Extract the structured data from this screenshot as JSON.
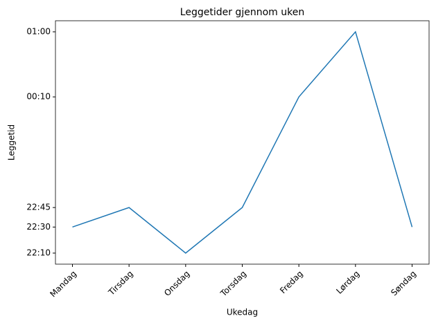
{
  "chart_data": {
    "type": "line",
    "title": "Leggetider gjennom uken",
    "x_label": "Ukedag",
    "y_label": "Leggetid",
    "categories": [
      "Mandag",
      "Tirsdag",
      "Onsdag",
      "Torsdag",
      "Fredag",
      "Lørdag",
      "Søndag"
    ],
    "series": [
      {
        "name": "Leggetid",
        "color": "#1f77b4",
        "values": [
          1350,
          1365,
          1330,
          1365,
          1450,
          1500,
          1350
        ]
      }
    ],
    "ylim": [
      1321.5,
      1508.5
    ],
    "yticks": [
      {
        "value": 1330,
        "label": "22:10"
      },
      {
        "value": 1350,
        "label": "22:30"
      },
      {
        "value": 1365,
        "label": "22:45"
      },
      {
        "value": 1450,
        "label": "00:10"
      },
      {
        "value": 1500,
        "label": "01:00"
      }
    ],
    "grid": false
  }
}
